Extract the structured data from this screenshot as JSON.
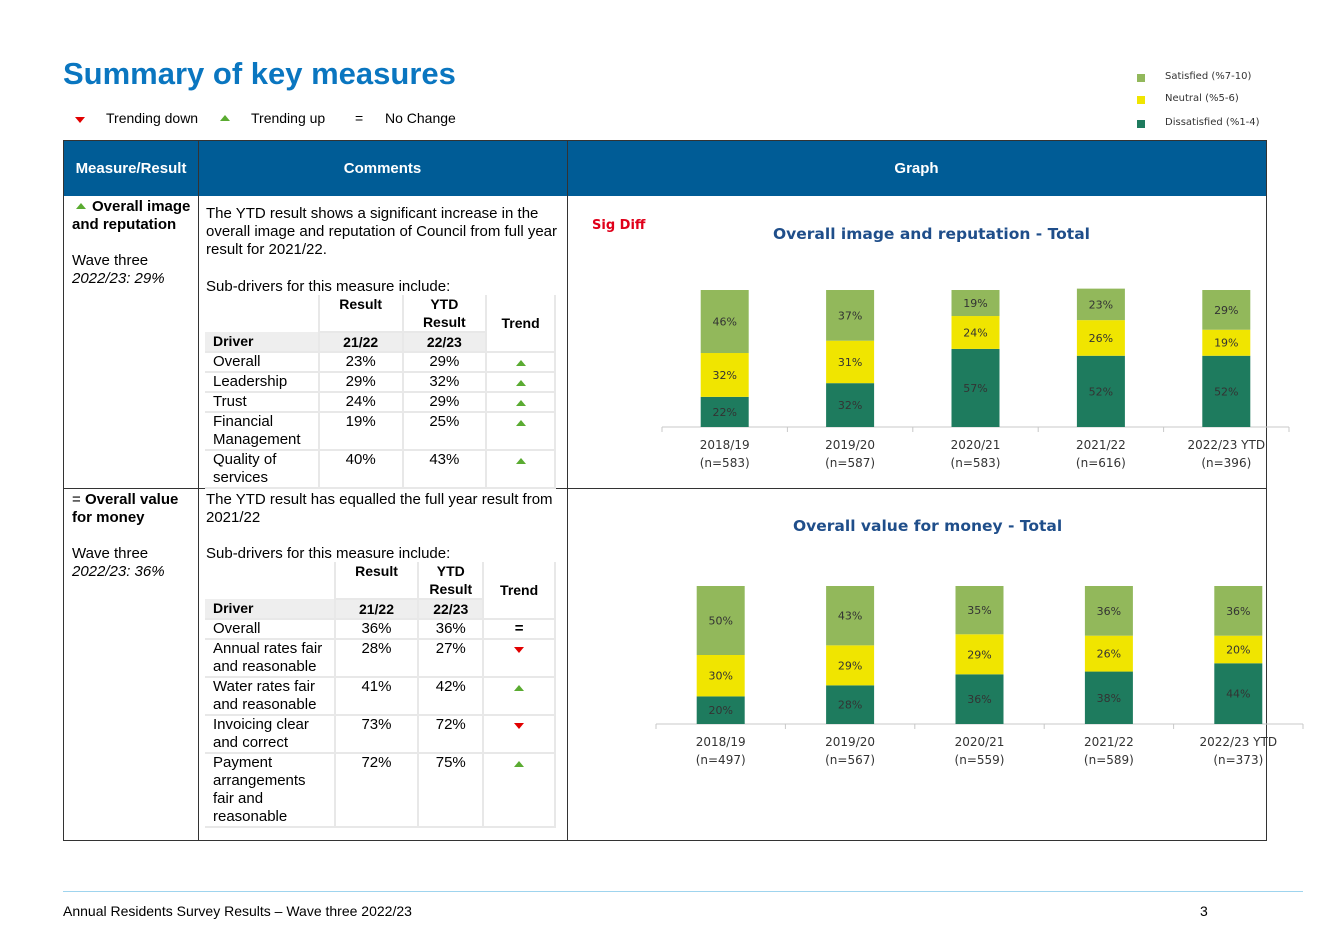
{
  "page": {
    "title": "Summary of key measures",
    "key": {
      "down_label": "Trending down",
      "up_label": "Trending up",
      "no_change_symbol": "=",
      "no_change_label": "No Change"
    },
    "legend": [
      {
        "label": "Satisfied (%7-10)",
        "color": "#92b85b"
      },
      {
        "label": "Neutral (%5-6)",
        "color": "#f0e500"
      },
      {
        "label": "Dissatisfied (%1-4)",
        "color": "#1e7b5e"
      }
    ],
    "footer": {
      "text": "Annual Residents Survey Results – Wave three 2022/23",
      "page_number": "3"
    }
  },
  "table": {
    "headers": {
      "measure": "Measure/Result",
      "comments": "Comments",
      "graph": "Graph"
    },
    "rows": [
      {
        "trend": "up",
        "measure_title": "Overall image and reputation",
        "wave_label": "Wave three",
        "wave_value": "2022/23: 29%",
        "comment": "The YTD result shows a significant increase in the overall image and reputation of Council from full year result for 2021/22.",
        "subdrivers_intro": "Sub-drivers for this measure include:",
        "sub_headers": {
          "result": "Result",
          "ytd_result": "YTD Result",
          "trend": "Trend",
          "driver": "Driver",
          "y1": "21/22",
          "y2": "22/23"
        },
        "subdrivers": [
          {
            "driver": "Overall",
            "r1": "23%",
            "r2": "29%",
            "trend": "up"
          },
          {
            "driver": "Leadership",
            "r1": "29%",
            "r2": "32%",
            "trend": "up"
          },
          {
            "driver": "Trust",
            "r1": "24%",
            "r2": "29%",
            "trend": "up"
          },
          {
            "driver": "Financial Management",
            "r1": "19%",
            "r2": "25%",
            "trend": "up"
          },
          {
            "driver": "Quality of services",
            "r1": "40%",
            "r2": "43%",
            "trend": "up"
          }
        ]
      },
      {
        "trend": "=",
        "measure_title": "Overall value for money",
        "wave_label": "Wave three",
        "wave_value": "2022/23: 36%",
        "comment": "The YTD result has equalled the full year result from 2021/22",
        "subdrivers_intro": "Sub-drivers for this measure include:",
        "sub_headers": {
          "result": "Result",
          "ytd_result": "YTD Result",
          "trend": "Trend",
          "driver": "Driver",
          "y1": "21/22",
          "y2": "22/23"
        },
        "subdrivers": [
          {
            "driver": "Overall",
            "r1": "36%",
            "r2": "36%",
            "trend": "="
          },
          {
            "driver": "Annual rates fair and reasonable",
            "r1": "28%",
            "r2": "27%",
            "trend": "down"
          },
          {
            "driver": "Water rates fair and reasonable",
            "r1": "41%",
            "r2": "42%",
            "trend": "up"
          },
          {
            "driver": "Invoicing clear and correct",
            "r1": "73%",
            "r2": "72%",
            "trend": "down"
          },
          {
            "driver": "Payment arrangements fair and reasonable",
            "r1": "72%",
            "r2": "75%",
            "trend": "up"
          }
        ]
      }
    ]
  },
  "chart_data": [
    {
      "type": "bar",
      "stacked": true,
      "title": "Overall image and reputation - Total",
      "annotation": "Sig Diff",
      "categories": [
        "2018/19",
        "2019/20",
        "2020/21",
        "2021/22",
        "2022/23 YTD"
      ],
      "category_n": [
        "(n=583)",
        "(n=587)",
        "(n=583)",
        "(n=616)",
        "(n=396)"
      ],
      "series": [
        {
          "name": "Dissatisfied (%1-4)",
          "color": "#1e7b5e",
          "values": [
            22,
            32,
            57,
            52,
            52
          ]
        },
        {
          "name": "Neutral (%5-6)",
          "color": "#f0e500",
          "values": [
            32,
            31,
            24,
            26,
            19
          ]
        },
        {
          "name": "Satisfied (%7-10)",
          "color": "#92b85b",
          "values": [
            46,
            37,
            19,
            23,
            29
          ]
        }
      ],
      "ylim": [
        0,
        100
      ]
    },
    {
      "type": "bar",
      "stacked": true,
      "title": "Overall value for money - Total",
      "categories": [
        "2018/19",
        "2019/20",
        "2020/21",
        "2021/22",
        "2022/23 YTD"
      ],
      "category_n": [
        "(n=497)",
        "(n=567)",
        "(n=559)",
        "(n=589)",
        "(n=373)"
      ],
      "series": [
        {
          "name": "Dissatisfied (%1-4)",
          "color": "#1e7b5e",
          "values": [
            20,
            28,
            36,
            38,
            44
          ]
        },
        {
          "name": "Neutral (%5-6)",
          "color": "#f0e500",
          "values": [
            30,
            29,
            29,
            26,
            20
          ]
        },
        {
          "name": "Satisfied (%7-10)",
          "color": "#92b85b",
          "values": [
            50,
            43,
            35,
            36,
            36
          ]
        }
      ],
      "ylim": [
        0,
        100
      ]
    }
  ]
}
